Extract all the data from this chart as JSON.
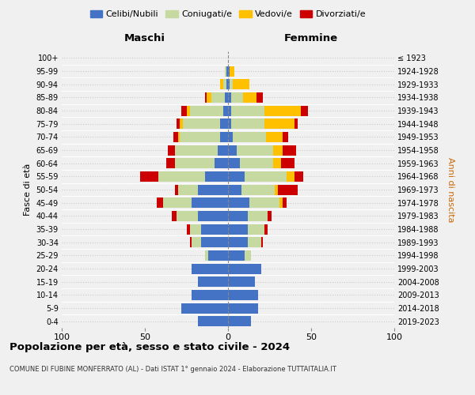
{
  "age_groups": [
    "0-4",
    "5-9",
    "10-14",
    "15-19",
    "20-24",
    "25-29",
    "30-34",
    "35-39",
    "40-44",
    "45-49",
    "50-54",
    "55-59",
    "60-64",
    "65-69",
    "70-74",
    "75-79",
    "80-84",
    "85-89",
    "90-94",
    "95-99",
    "100+"
  ],
  "birth_years": [
    "2019-2023",
    "2014-2018",
    "2009-2013",
    "2004-2008",
    "1999-2003",
    "1994-1998",
    "1989-1993",
    "1984-1988",
    "1979-1983",
    "1974-1978",
    "1969-1973",
    "1964-1968",
    "1959-1963",
    "1954-1958",
    "1949-1953",
    "1944-1948",
    "1939-1943",
    "1934-1938",
    "1929-1933",
    "1924-1928",
    "≤ 1923"
  ],
  "maschi": {
    "celibi": [
      18,
      28,
      22,
      18,
      22,
      12,
      16,
      16,
      18,
      22,
      18,
      14,
      8,
      6,
      5,
      5,
      3,
      2,
      1,
      1,
      0
    ],
    "coniugati": [
      0,
      0,
      0,
      0,
      0,
      2,
      6,
      7,
      13,
      17,
      12,
      28,
      24,
      26,
      24,
      22,
      20,
      8,
      2,
      1,
      0
    ],
    "vedovi": [
      0,
      0,
      0,
      0,
      0,
      0,
      0,
      0,
      0,
      0,
      0,
      0,
      0,
      0,
      1,
      2,
      2,
      3,
      2,
      0,
      0
    ],
    "divorziati": [
      0,
      0,
      0,
      0,
      0,
      0,
      1,
      2,
      3,
      4,
      2,
      11,
      5,
      4,
      3,
      2,
      3,
      1,
      0,
      0,
      0
    ]
  },
  "femmine": {
    "nubili": [
      14,
      18,
      18,
      16,
      20,
      10,
      12,
      12,
      12,
      13,
      8,
      10,
      7,
      5,
      3,
      2,
      2,
      2,
      1,
      1,
      0
    ],
    "coniugate": [
      0,
      0,
      0,
      0,
      0,
      4,
      8,
      10,
      12,
      18,
      20,
      25,
      20,
      22,
      20,
      20,
      20,
      7,
      2,
      0,
      0
    ],
    "vedove": [
      0,
      0,
      0,
      0,
      0,
      0,
      0,
      0,
      0,
      2,
      2,
      5,
      5,
      6,
      10,
      18,
      22,
      8,
      10,
      3,
      0
    ],
    "divorziate": [
      0,
      0,
      0,
      0,
      0,
      0,
      1,
      2,
      2,
      2,
      12,
      5,
      8,
      8,
      3,
      2,
      4,
      4,
      0,
      0,
      0
    ]
  },
  "colors": {
    "celibi_nubili": "#4472c4",
    "coniugati": "#c5d9a0",
    "vedovi": "#ffc000",
    "divorziati": "#cc0000"
  },
  "title": "Popolazione per età, sesso e stato civile - 2024",
  "subtitle": "COMUNE DI FUBINE MONFERRATO (AL) - Dati ISTAT 1° gennaio 2024 - Elaborazione TUTTAITALIA.IT",
  "xlabel_left": "Maschi",
  "xlabel_right": "Femmine",
  "ylabel_left": "Fasce di età",
  "ylabel_right": "Anni di nascita",
  "xlim": [
    -100,
    100
  ],
  "background_color": "#f0f0f0",
  "grid_color": "#cccccc"
}
